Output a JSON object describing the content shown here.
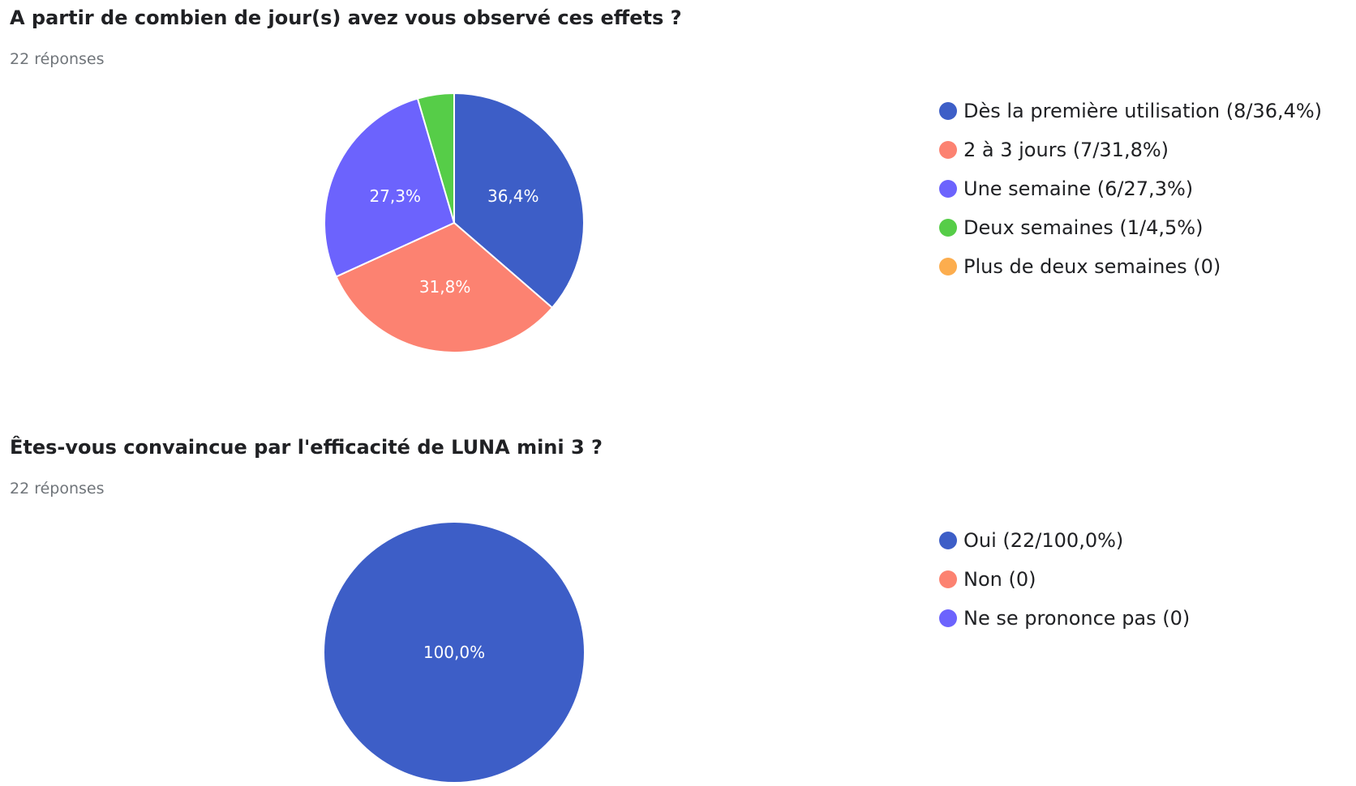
{
  "chart_data": [
    {
      "type": "pie",
      "title": "A partir de combien de jour(s) avez vous observé ces effets ?",
      "subtitle": "22 réponses",
      "legend_position": "right",
      "start_angle_deg": 0,
      "categories": [
        "Dès la première utilisation (8/36,4%)",
        "2 à 3 jours (7/31,8%)",
        "Une semaine (6/27,3%)",
        "Deux semaines (1/4,5%)",
        "Plus de deux semaines (0)"
      ],
      "values": [
        8,
        7,
        6,
        1,
        0
      ],
      "slice_labels": [
        "36,4%",
        "31,8%",
        "27,3%",
        "",
        ""
      ],
      "colors": [
        "#3d5ec7",
        "#fc8271",
        "#6c63fd",
        "#56cd48",
        "#fcad4e"
      ]
    },
    {
      "type": "pie",
      "title": "Êtes-vous convaincue par l'efficacité de LUNA mini 3 ?",
      "subtitle": "22 réponses",
      "legend_position": "right",
      "start_angle_deg": 0,
      "categories": [
        "Oui (22/100,0%)",
        "Non (0)",
        "Ne se prononce pas (0)"
      ],
      "values": [
        22,
        0,
        0
      ],
      "slice_labels": [
        "100,0%",
        "",
        ""
      ],
      "colors": [
        "#3d5ec7",
        "#fc8271",
        "#6c63fd"
      ]
    }
  ]
}
